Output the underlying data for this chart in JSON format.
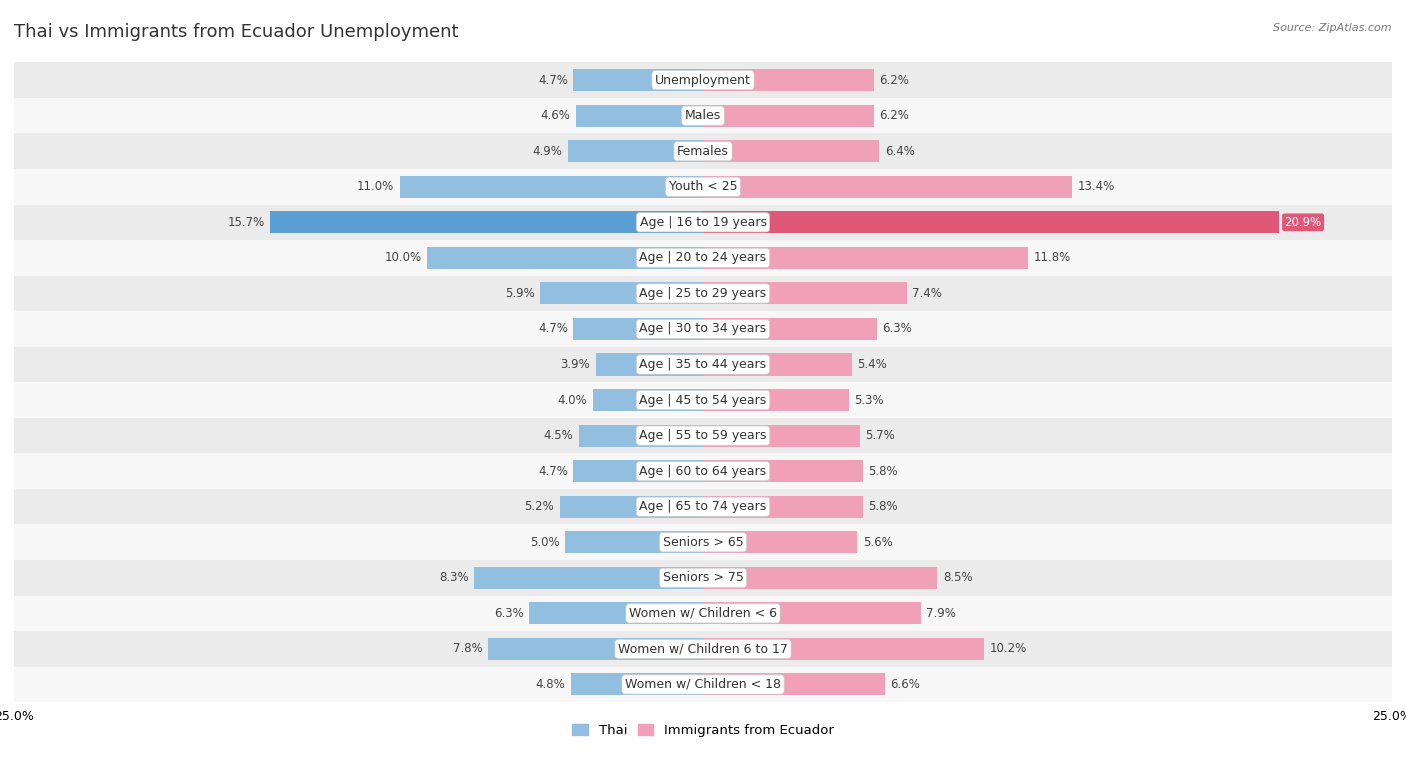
{
  "title": "Thai vs Immigrants from Ecuador Unemployment",
  "source": "Source: ZipAtlas.com",
  "categories": [
    "Unemployment",
    "Males",
    "Females",
    "Youth < 25",
    "Age | 16 to 19 years",
    "Age | 20 to 24 years",
    "Age | 25 to 29 years",
    "Age | 30 to 34 years",
    "Age | 35 to 44 years",
    "Age | 45 to 54 years",
    "Age | 55 to 59 years",
    "Age | 60 to 64 years",
    "Age | 65 to 74 years",
    "Seniors > 65",
    "Seniors > 75",
    "Women w/ Children < 6",
    "Women w/ Children 6 to 17",
    "Women w/ Children < 18"
  ],
  "thai_values": [
    4.7,
    4.6,
    4.9,
    11.0,
    15.7,
    10.0,
    5.9,
    4.7,
    3.9,
    4.0,
    4.5,
    4.7,
    5.2,
    5.0,
    8.3,
    6.3,
    7.8,
    4.8
  ],
  "ecuador_values": [
    6.2,
    6.2,
    6.4,
    13.4,
    20.9,
    11.8,
    7.4,
    6.3,
    5.4,
    5.3,
    5.7,
    5.8,
    5.8,
    5.6,
    8.5,
    7.9,
    10.2,
    6.6
  ],
  "thai_color": "#92bfdf",
  "ecuador_color": "#f0a0b8",
  "thai_highlight_color": "#5b9fd4",
  "ecuador_highlight_color": "#e05878",
  "youth_thai_color": "#7ab0d8",
  "youth_ecuador_color": "#f0a0b8",
  "seniors75_thai_color": "#7ab0d8",
  "seniors75_ecuador_color": "#f0a0b8",
  "women617_thai_color": "#7ab0d8",
  "women617_ecuador_color": "#f0a0b8",
  "highlight_rows": [
    4
  ],
  "xlim": 25.0,
  "legend_thai": "Thai",
  "legend_ecuador": "Immigrants from Ecuador",
  "bg_color_row": "#ebebeb",
  "bg_color_alt": "#f7f7f7",
  "title_fontsize": 13,
  "label_fontsize": 9,
  "value_fontsize": 8.5,
  "bar_height": 0.62
}
